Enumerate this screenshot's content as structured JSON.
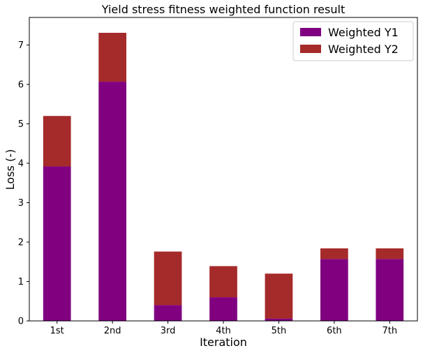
{
  "chart_data": {
    "type": "bar",
    "stacked": true,
    "title": "Yield stress fitness weighted function result",
    "xlabel": "Iteration",
    "ylabel": "Loss (-)",
    "categories": [
      "1st",
      "2nd",
      "3rd",
      "4th",
      "5th",
      "6th",
      "7th"
    ],
    "series": [
      {
        "name": "Weighted Y1",
        "color": "#800080",
        "values": [
          3.92,
          6.07,
          0.4,
          0.6,
          0.06,
          1.57,
          1.57
        ]
      },
      {
        "name": "Weighted Y2",
        "color": "#a52a2a",
        "values": [
          1.28,
          1.24,
          1.36,
          0.79,
          1.14,
          0.27,
          0.27
        ]
      }
    ],
    "ylim": [
      0,
      7.7
    ],
    "yticks": [
      0,
      1,
      2,
      3,
      4,
      5,
      6,
      7
    ],
    "grid": false,
    "legend_position": "top-right"
  }
}
